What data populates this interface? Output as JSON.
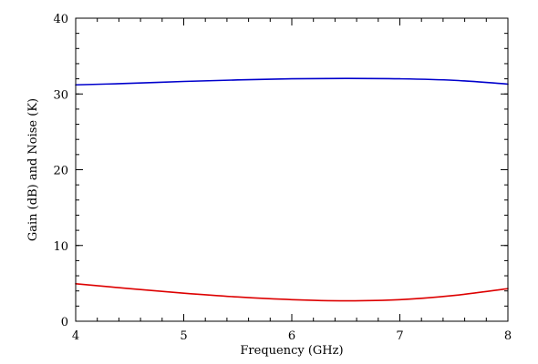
{
  "chart_data": {
    "type": "line",
    "title": "",
    "xlabel": "Frequency (GHz)",
    "ylabel": "Gain (dB)  and Noise (K)",
    "xlim": [
      4,
      8
    ],
    "ylim": [
      0,
      40
    ],
    "x_ticks": [
      4,
      5,
      6,
      7,
      8
    ],
    "y_ticks": [
      0,
      10,
      20,
      30,
      40
    ],
    "x_minor_step": 0.2,
    "y_minor_step": 2,
    "grid": false,
    "legend": "none",
    "series": [
      {
        "color": "#0000cc",
        "x": [
          4.0,
          4.5,
          5.0,
          5.5,
          6.0,
          6.5,
          7.0,
          7.5,
          8.0
        ],
        "y": [
          31.2,
          31.4,
          31.65,
          31.85,
          32.0,
          32.05,
          32.0,
          31.8,
          31.3
        ]
      },
      {
        "color": "#dd0000",
        "x": [
          4.0,
          4.5,
          5.0,
          5.5,
          6.0,
          6.5,
          7.0,
          7.5,
          8.0
        ],
        "y": [
          4.95,
          4.3,
          3.7,
          3.2,
          2.85,
          2.7,
          2.85,
          3.4,
          4.3
        ]
      }
    ]
  }
}
